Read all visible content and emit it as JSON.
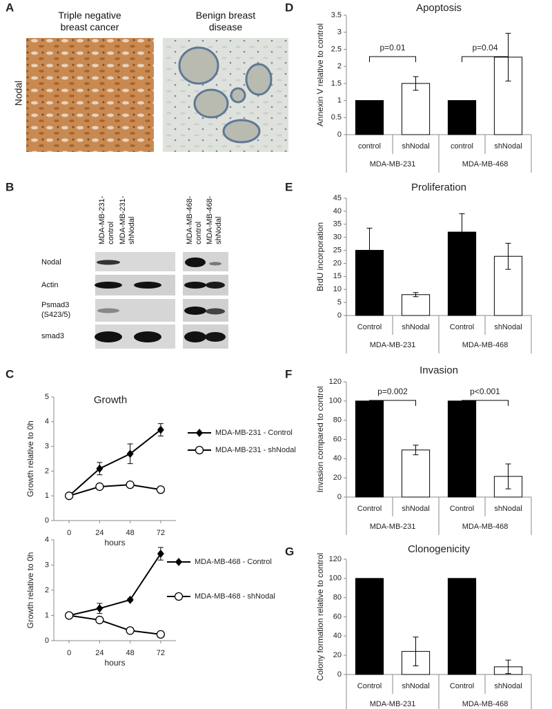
{
  "panel_labels": [
    "A",
    "B",
    "C",
    "D",
    "E",
    "F",
    "G"
  ],
  "panel_a": {
    "row_label": "Nodal",
    "columns": [
      "Triple negative breast cancer",
      "Benign breast disease"
    ]
  },
  "panel_b": {
    "columns": [
      "MDA-MB-231-control",
      "MDA-MB-231-shNodal",
      "MDA-MB-468-control",
      "MDA-MB-468-shNodal"
    ],
    "rows": [
      "Nodal",
      "Actin",
      "Psmad3 (S423/5)",
      "smad3"
    ]
  },
  "chart_data": [
    {
      "type": "line",
      "title": "Growth",
      "xlabel": "hours",
      "ylabel": "Growth relative to 0h",
      "x": [
        0,
        24,
        48,
        72
      ],
      "xlim": [
        -12,
        84
      ],
      "xticks": [
        0,
        24,
        48,
        72
      ],
      "ylim": [
        0,
        5
      ],
      "yticks": [
        0,
        1,
        2,
        3,
        4,
        5
      ],
      "grid": false,
      "series": [
        {
          "name": "MDA-MB-231 - Control",
          "color": "#000000",
          "marker": "diamond",
          "values": [
            1,
            2.1,
            2.7,
            3.67
          ],
          "errors": [
            0.05,
            0.25,
            0.4,
            0.25
          ]
        },
        {
          "name": "MDA-MB-231 - shNodal",
          "color": "#000000",
          "marker": "circle",
          "values": [
            1,
            1.37,
            1.45,
            1.25
          ],
          "errors": [
            0.05,
            0.08,
            0.08,
            0.08
          ]
        }
      ]
    },
    {
      "type": "line",
      "xlabel": "hours",
      "ylabel": "Growth relative to 0h",
      "x": [
        0,
        24,
        48,
        72
      ],
      "xlim": [
        -12,
        84
      ],
      "xticks": [
        0,
        24,
        48,
        72
      ],
      "ylim": [
        0,
        4
      ],
      "yticks": [
        0,
        1,
        2,
        3,
        4
      ],
      "grid": false,
      "series": [
        {
          "name": "MDA-MB-468 - Control",
          "color": "#000000",
          "marker": "diamond",
          "values": [
            1,
            1.28,
            1.62,
            3.45
          ],
          "errors": [
            0.05,
            0.2,
            0.05,
            0.25
          ]
        },
        {
          "name": "MDA-MB-468 - shNodal",
          "color": "#000000",
          "marker": "circle",
          "values": [
            1,
            0.82,
            0.4,
            0.25
          ],
          "errors": [
            0.05,
            0.05,
            0.05,
            0.05
          ]
        }
      ]
    },
    {
      "type": "bar",
      "title": "Apoptosis",
      "ylabel": "Annexin V relative to control",
      "categories": [
        "control",
        "shNodal",
        "control",
        "shNodal"
      ],
      "groups": [
        "MDA-MB-231",
        "MDA-MB-468"
      ],
      "values": [
        1,
        1.5,
        1,
        2.27
      ],
      "errors": [
        0,
        0.2,
        0,
        0.7
      ],
      "colors": [
        "#000000",
        "#ffffff",
        "#000000",
        "#ffffff"
      ],
      "annotations": [
        "p=0.01",
        "p=0.04"
      ],
      "ylim": [
        0,
        3.5
      ],
      "yticks": [
        0,
        0.5,
        1,
        1.5,
        2,
        2.5,
        3,
        3.5
      ],
      "grid": false
    },
    {
      "type": "bar",
      "title": "Proliferation",
      "ylabel": "BrdU incorporation",
      "categories": [
        "Control",
        "shNodal",
        "Control",
        "shNodal"
      ],
      "groups": [
        "MDA-MB-231",
        "MDA-MB-468"
      ],
      "values": [
        25,
        8,
        32,
        22.7
      ],
      "errors": [
        8.5,
        0.8,
        7,
        5
      ],
      "colors": [
        "#000000",
        "#ffffff",
        "#000000",
        "#ffffff"
      ],
      "ylim": [
        0,
        45
      ],
      "yticks": [
        0,
        5,
        10,
        15,
        20,
        25,
        30,
        35,
        40,
        45
      ],
      "grid": false
    },
    {
      "type": "bar",
      "title": "Invasion",
      "ylabel": "Invasion compared to control",
      "categories": [
        "Control",
        "shNodal",
        "Control",
        "shNodal"
      ],
      "groups": [
        "MDA-MB-231",
        "MDA-MB-468"
      ],
      "values": [
        100,
        49,
        100,
        21.5
      ],
      "errors": [
        0,
        5,
        0,
        13
      ],
      "colors": [
        "#000000",
        "#ffffff",
        "#000000",
        "#ffffff"
      ],
      "annotations": [
        "p=0.002",
        "p<0.001"
      ],
      "ylim": [
        0,
        120
      ],
      "yticks": [
        0,
        20,
        40,
        60,
        80,
        100,
        120
      ],
      "grid": false
    },
    {
      "type": "bar",
      "title": "Clonogenicity",
      "ylabel": "Colony formation relative to control",
      "categories": [
        "Control",
        "shNodal",
        "Control",
        "shNodal"
      ],
      "groups": [
        "MDA-MB-231",
        "MDA-MB-468"
      ],
      "values": [
        100,
        24,
        100,
        8
      ],
      "errors": [
        0,
        15,
        0,
        7
      ],
      "colors": [
        "#000000",
        "#ffffff",
        "#000000",
        "#ffffff"
      ],
      "ylim": [
        0,
        120
      ],
      "yticks": [
        0,
        20,
        40,
        60,
        80,
        100,
        120
      ],
      "grid": false
    }
  ]
}
